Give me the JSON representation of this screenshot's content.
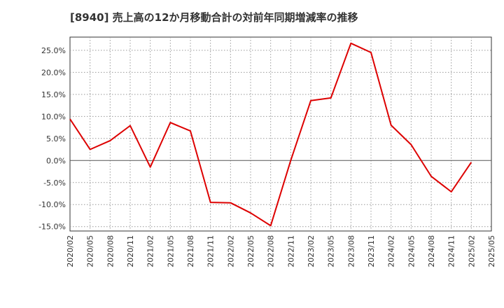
{
  "chart_data": {
    "type": "line",
    "title": "[8940]  売上高の12か月移動合計の対前年同期増減率の推移",
    "xlabel": "",
    "ylabel": "",
    "ylim": [
      -16,
      28
    ],
    "yticks": [
      25,
      20,
      15,
      10,
      5,
      0,
      -5,
      -10,
      -15
    ],
    "ytick_labels": [
      "25.0%",
      "20.0%",
      "15.0%",
      "10.0%",
      "5.0%",
      "0.0%",
      "-5.0%",
      "-10.0%",
      "-15.0%"
    ],
    "categories": [
      "2020/02",
      "2020/05",
      "2020/08",
      "2020/11",
      "2021/02",
      "2021/05",
      "2021/08",
      "2021/11",
      "2022/02",
      "2022/05",
      "2022/08",
      "2022/11",
      "2023/02",
      "2023/05",
      "2023/08",
      "2023/11",
      "2024/02",
      "2024/05",
      "2024/08",
      "2024/11",
      "2025/02",
      "2025/05"
    ],
    "series": [
      {
        "name": "売上高の12か月移動合計の対前年同期増減率",
        "color": "#dd0000",
        "values": [
          9.4,
          2.5,
          4.5,
          7.9,
          -1.5,
          8.6,
          6.7,
          -9.5,
          -9.6,
          -11.9,
          -14.8,
          0.0,
          13.6,
          14.2,
          26.6,
          24.5,
          8.0,
          3.6,
          -3.6,
          -7.1,
          -0.4,
          null
        ]
      }
    ],
    "grid": true,
    "legend": "none"
  }
}
